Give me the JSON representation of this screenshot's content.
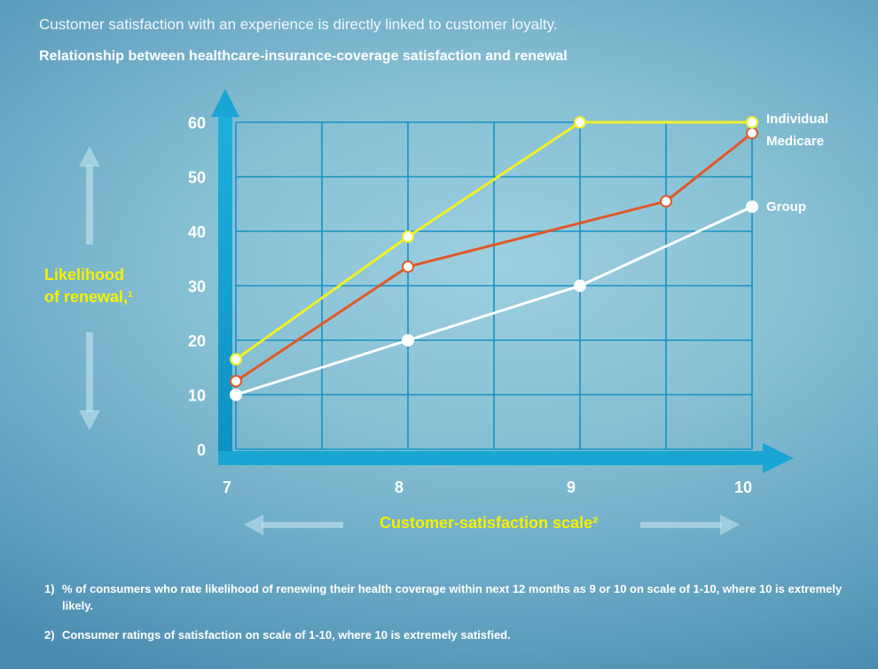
{
  "intro": "Customer satisfaction with an experience is directly linked to customer loyalty.",
  "title": "Relationship between healthcare-insurance-coverage satisfaction and renewal",
  "ylabel_line1": "Likelihood",
  "ylabel_line2": "of renewal,¹",
  "xlabel": "Customer-satisfaction scale²",
  "footnotes": [
    {
      "num": "1)",
      "text": "% of consumers who rate likelihood of renewing their health coverage within next 12 months as 9 or 10 on scale of 1-10, where 10 is extremely likely."
    },
    {
      "num": "2)",
      "text": "Consumer ratings of satisfaction on scale of 1-10, where 10 is extremely satisfied."
    }
  ],
  "colors": {
    "axis": "#1aa6d4",
    "grid": "#1592c4",
    "individual": "#f0f02a",
    "medicare": "#e0582a",
    "group": "#ffffff",
    "label_yellow": "#f5f000"
  },
  "chart_data": {
    "type": "line",
    "xlabel": "Customer-satisfaction scale²",
    "ylabel": "Likelihood of renewal,¹",
    "xlim": [
      7,
      10
    ],
    "ylim": [
      0,
      60
    ],
    "x_ticks": [
      "7",
      "8",
      "9",
      "10"
    ],
    "y_ticks": [
      "0",
      "10",
      "20",
      "30",
      "40",
      "50",
      "60"
    ],
    "grid": true,
    "legend": "right, labels at line ends",
    "series": [
      {
        "name": "Individual",
        "points": [
          [
            7,
            16.5
          ],
          [
            8,
            39
          ],
          [
            9,
            60
          ],
          [
            10,
            60
          ]
        ]
      },
      {
        "name": "Medicare",
        "points": [
          [
            7,
            12.5
          ],
          [
            8,
            33.5
          ],
          [
            9.5,
            45.5
          ],
          [
            10,
            58
          ]
        ]
      },
      {
        "name": "Group",
        "points": [
          [
            7,
            10
          ],
          [
            8,
            20
          ],
          [
            9,
            30
          ],
          [
            10,
            44.5
          ]
        ]
      }
    ]
  }
}
